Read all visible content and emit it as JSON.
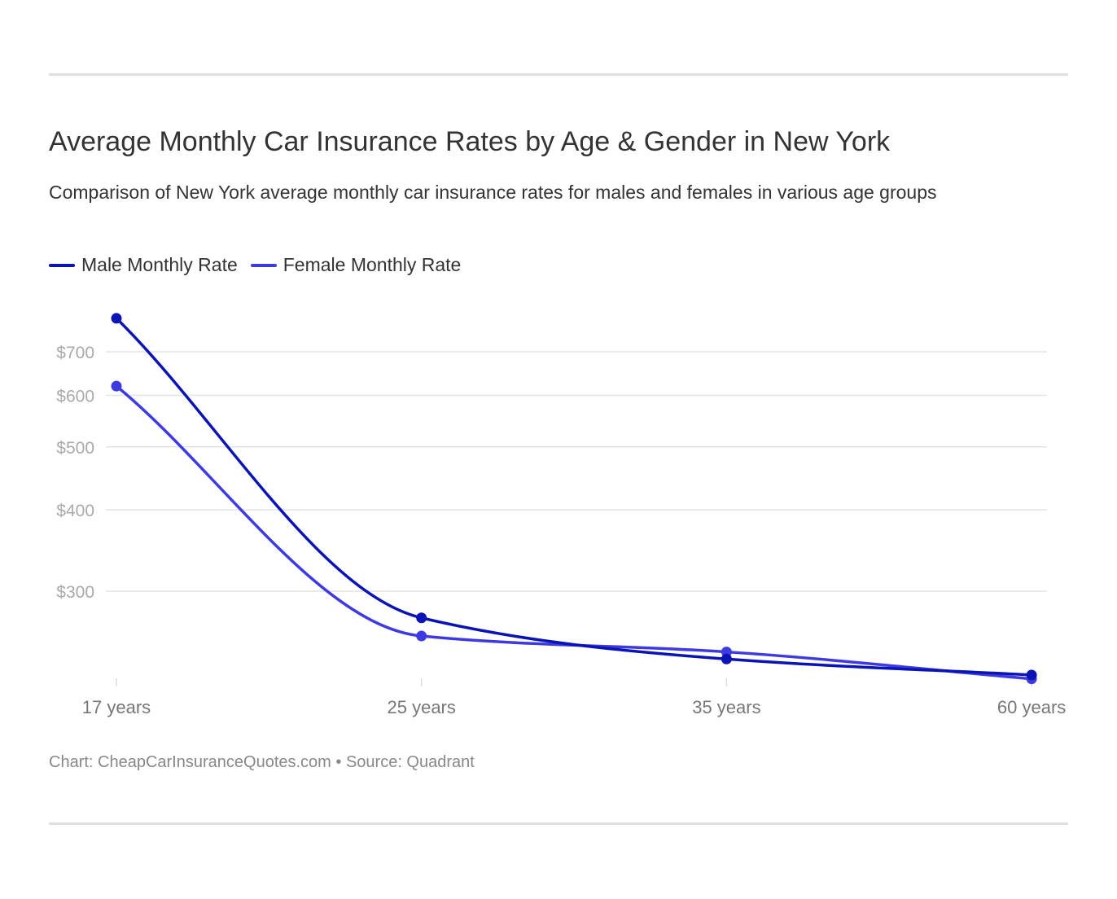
{
  "chart_data": {
    "type": "line",
    "title": "Average Monthly Car Insurance Rates by Age & Gender in New York",
    "subtitle": "Comparison of New York average monthly car insurance rates for males and females in various age groups",
    "categories": [
      "17 years",
      "25 years",
      "35 years",
      "60 years"
    ],
    "y_scale": "log",
    "y_ticks": [
      300,
      400,
      500,
      600,
      700
    ],
    "y_tick_labels": [
      "$300",
      "$400",
      "$500",
      "$600",
      "$700"
    ],
    "grid": true,
    "legend_position": "top-left",
    "series": [
      {
        "name": "Male Monthly Rate",
        "color": "#0a14b4",
        "values": [
          788,
          273,
          236,
          223
        ]
      },
      {
        "name": "Female Monthly Rate",
        "color": "#3d3ae0",
        "values": [
          620,
          256,
          242,
          220
        ]
      }
    ],
    "footer": "Chart: CheapCarInsuranceQuotes.com • Source: Quadrant"
  }
}
